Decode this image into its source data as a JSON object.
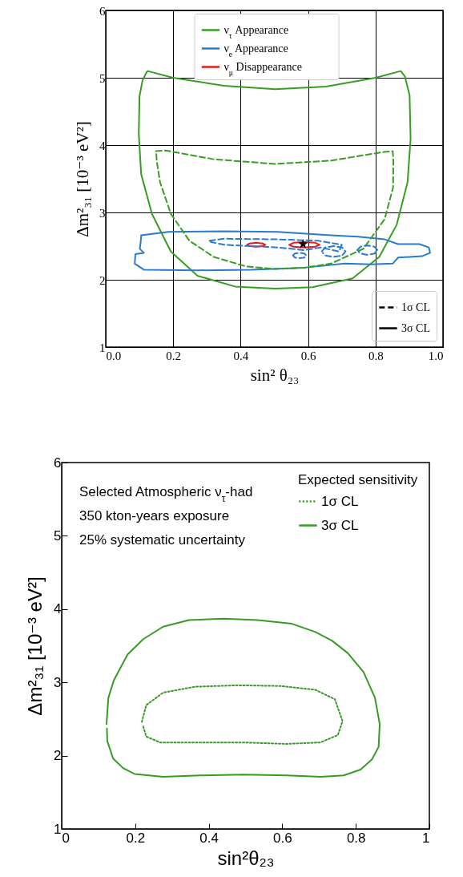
{
  "chart_data": [
    {
      "type": "line",
      "xlabel": "sin² θ₂₃",
      "ylabel": "Δm²₃₁ [10⁻³ eV²]",
      "xlim": [
        0,
        1
      ],
      "ylim": [
        1,
        6
      ],
      "xticks": [
        {
          "value": 0,
          "label": "0.0"
        },
        {
          "value": 0.2,
          "label": "0.2"
        },
        {
          "value": 0.4,
          "label": "0.4"
        },
        {
          "value": 0.6,
          "label": "0.6"
        },
        {
          "value": 0.8,
          "label": "0.8"
        },
        {
          "value": 1,
          "label": "1.0"
        }
      ],
      "yticks": [
        1,
        2,
        3,
        4,
        5,
        6
      ],
      "grid": true,
      "legend": "top",
      "annotations": [
        "1σ CL",
        "3σ CL"
      ],
      "series": [
        {
          "name": "ν$_{τ}$ Appearance",
          "color": "#3a9d23",
          "line_style": "solid",
          "x": [
            0.124,
            0.2,
            0.351,
            0.502,
            0.653,
            0.8,
            0.875,
            0.887,
            0.901,
            0.904,
            0.895,
            0.863,
            0.811,
            0.732,
            0.613,
            0.502,
            0.383,
            0.272,
            0.193,
            0.137,
            0.105,
            0.098,
            0.1,
            0.109,
            0.122
          ],
          "values": [
            5.1,
            5.0,
            4.88,
            4.83,
            4.87,
            5.0,
            5.1,
            5.02,
            4.74,
            4.09,
            3.45,
            2.82,
            2.34,
            2.02,
            1.89,
            1.87,
            1.9,
            2.06,
            2.42,
            2.98,
            3.57,
            4.17,
            4.72,
            4.96,
            5.09
          ]
        },
        {
          "name": "ν$_{e}$ Appearance",
          "color": "#2a7ccb",
          "line_style": "solid",
          "x": [
            0.105,
            0.185,
            0.351,
            0.51,
            0.668,
            0.748,
            0.827,
            0.867,
            0.93,
            0.958,
            0.962,
            0.938,
            0.867,
            0.851,
            0.787,
            0.708,
            0.589,
            0.431,
            0.272,
            0.113,
            0.086,
            0.088,
            0.113,
            0.101,
            0.104,
            0.105
          ],
          "values": [
            2.66,
            2.71,
            2.72,
            2.71,
            2.66,
            2.64,
            2.6,
            2.53,
            2.53,
            2.48,
            2.4,
            2.35,
            2.33,
            2.24,
            2.23,
            2.24,
            2.18,
            2.15,
            2.14,
            2.15,
            2.24,
            2.38,
            2.4,
            2.46,
            2.58,
            2.65
          ]
        },
        {
          "name": "ν$_{μ}$ Disappearance",
          "color": "#e8191c",
          "line_style": "solid",
          "x": [
            0.419,
            0.427,
            0.446,
            0.465,
            0.473,
            0.465,
            0.446,
            0.427,
            0.421
          ],
          "values": [
            2.52,
            2.54,
            2.55,
            2.54,
            2.52,
            2.5,
            2.49,
            2.5,
            2.51
          ]
        },
        {
          "color": "#e8191c",
          "line_style": "solid",
          "x": [
            0.544,
            0.557,
            0.589,
            0.621,
            0.634,
            0.621,
            0.589,
            0.557,
            0.547
          ],
          "values": [
            2.52,
            2.55,
            2.56,
            2.55,
            2.52,
            2.49,
            2.48,
            2.49,
            2.51
          ]
        },
        {
          "color": "#3a9d23",
          "line_style": "dashed",
          "x": [
            0.149,
            0.177,
            0.32,
            0.502,
            0.668,
            0.827,
            0.851,
            0.853,
            0.852,
            0.827,
            0.764,
            0.668,
            0.589,
            0.502,
            0.415,
            0.32,
            0.248,
            0.193,
            0.161,
            0.151,
            0.15
          ],
          "values": [
            3.91,
            3.92,
            3.79,
            3.72,
            3.77,
            3.9,
            3.91,
            3.77,
            3.37,
            2.9,
            2.46,
            2.24,
            2.18,
            2.16,
            2.2,
            2.34,
            2.58,
            2.98,
            3.45,
            3.77,
            3.87
          ]
        },
        {
          "color": "#2a7ccb",
          "line_style": "dashed",
          "x": [
            0.308,
            0.351,
            0.51,
            0.629,
            0.7,
            0.692,
            0.637,
            0.589,
            0.51,
            0.431,
            0.351,
            0.313,
            0.31
          ],
          "values": [
            2.58,
            2.61,
            2.6,
            2.58,
            2.52,
            2.42,
            2.48,
            2.44,
            2.48,
            2.5,
            2.52,
            2.56,
            2.57
          ]
        },
        {
          "color": "#2a7ccb",
          "line_style": "dashed",
          "x": [
            0.641,
            0.651,
            0.676,
            0.701,
            0.711,
            0.701,
            0.676,
            0.651,
            0.644
          ],
          "values": [
            2.42,
            2.48,
            2.5,
            2.48,
            2.42,
            2.36,
            2.34,
            2.36,
            2.4
          ]
        },
        {
          "color": "#2a7ccb",
          "line_style": "dashed",
          "x": [
            0.746,
            0.755,
            0.776,
            0.797,
            0.806,
            0.797,
            0.776,
            0.755,
            0.749
          ],
          "values": [
            2.44,
            2.49,
            2.51,
            2.49,
            2.44,
            2.39,
            2.37,
            2.39,
            2.42
          ]
        },
        {
          "color": "#2a7ccb",
          "line_style": "dashed",
          "x": [
            0.555,
            0.561,
            0.575,
            0.589,
            0.595,
            0.589,
            0.575,
            0.561,
            0.557
          ],
          "values": [
            2.36,
            2.39,
            2.4,
            2.39,
            2.36,
            2.33,
            2.32,
            2.33,
            2.35
          ]
        },
        {
          "type": "scatter",
          "color": "#000000",
          "marker": "star",
          "x": [
            0.585
          ],
          "values": [
            2.53
          ]
        }
      ]
    },
    {
      "type": "line",
      "xlabel": "sin²θ₂₃",
      "ylabel": "Δm²₃₁ [10⁻³ eV²]",
      "xlim": [
        0,
        1
      ],
      "ylim": [
        1,
        6
      ],
      "xticks": [
        0,
        0.2,
        0.4,
        0.6,
        0.8,
        1
      ],
      "yticks": [
        1,
        2,
        3,
        4,
        5,
        6
      ],
      "grid": false,
      "legend": "top right",
      "legend_title": "Expected sensitivity",
      "annotations": [
        "Selected Atmospheric ν$_{τ}$-had",
        "350 kton-years exposure",
        "25% systematic uncertainty"
      ],
      "series": [
        {
          "name": "1σ CL",
          "color": "#3a9a28",
          "line_style": "dotted",
          "x": [
            0.218,
            0.23,
            0.276,
            0.362,
            0.479,
            0.595,
            0.689,
            0.743,
            0.764,
            0.751,
            0.704,
            0.611,
            0.494,
            0.362,
            0.268,
            0.23,
            0.221
          ],
          "values": [
            2.46,
            2.69,
            2.86,
            2.94,
            2.96,
            2.95,
            2.9,
            2.77,
            2.47,
            2.28,
            2.18,
            2.16,
            2.18,
            2.18,
            2.18,
            2.26,
            2.41
          ]
        },
        {
          "name": "3σ CL",
          "color": "#3a9a28",
          "line_style": "solid",
          "x": [
            0.122,
            0.127,
            0.142,
            0.179,
            0.222,
            0.276,
            0.346,
            0.44,
            0.533,
            0.626,
            0.689,
            0.735,
            0.778,
            0.821,
            0.852,
            0.865,
            0.862,
            0.844,
            0.813,
            0.767,
            0.704,
            0.611,
            0.494,
            0.377,
            0.276,
            0.198,
            0.167,
            0.14,
            0.124,
            0.123
          ],
          "values": [
            2.43,
            2.79,
            3.03,
            3.38,
            3.59,
            3.76,
            3.85,
            3.87,
            3.85,
            3.8,
            3.69,
            3.57,
            3.4,
            3.14,
            2.79,
            2.43,
            2.12,
            1.95,
            1.81,
            1.73,
            1.71,
            1.73,
            1.74,
            1.73,
            1.71,
            1.75,
            1.83,
            1.96,
            2.2,
            2.37
          ]
        }
      ]
    }
  ]
}
